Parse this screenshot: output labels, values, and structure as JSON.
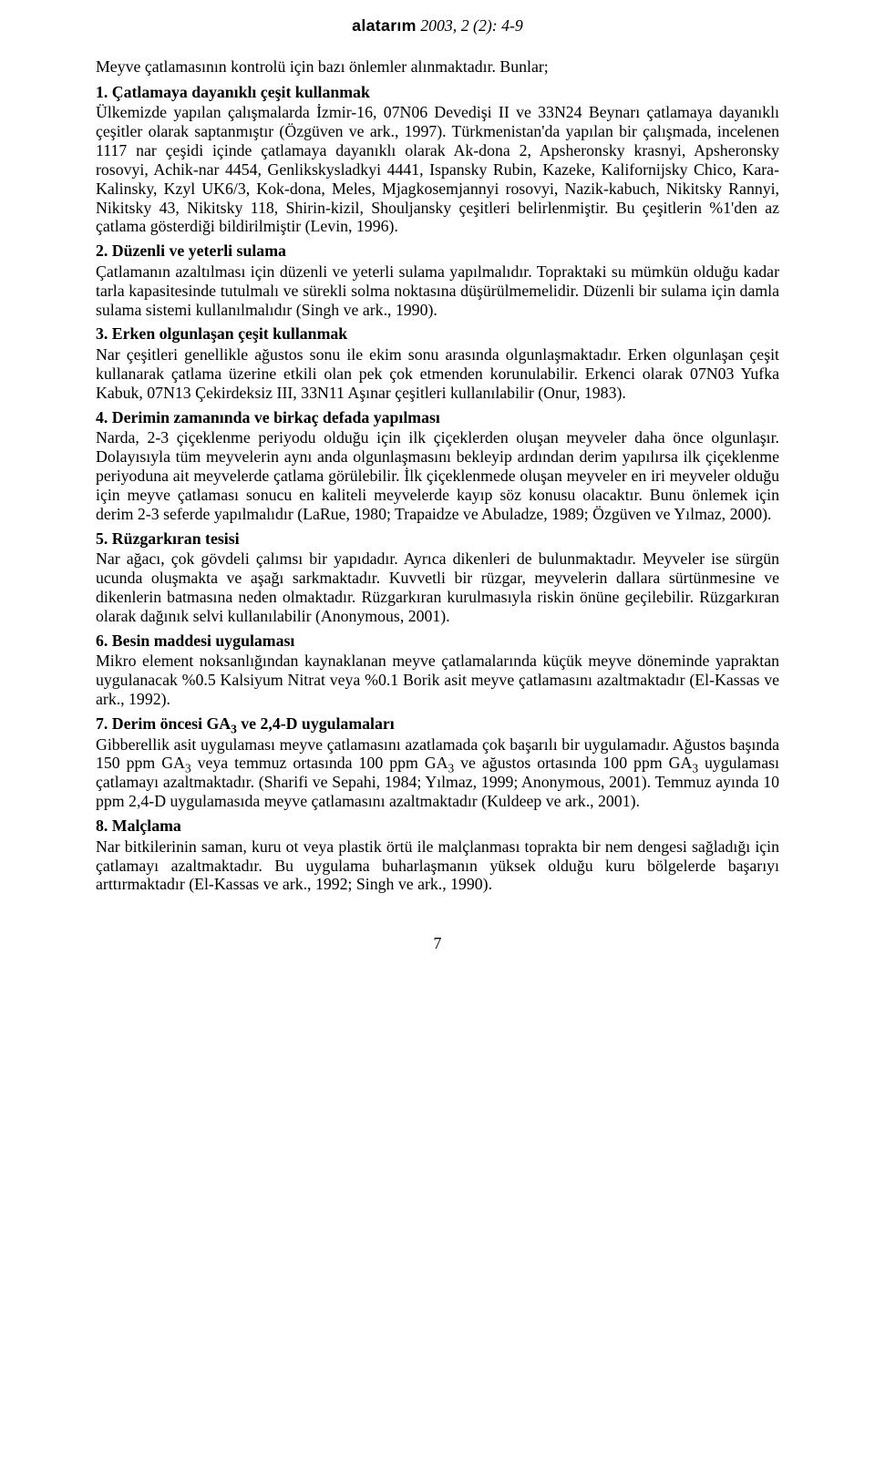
{
  "header": {
    "journal_name": "alatarım",
    "issue": "2003, 2 (2): 4-9"
  },
  "intro": "Meyve çatlamasının kontrolü için bazı önlemler alınmaktadır. Bunlar;",
  "sections": [
    {
      "title": "1. Çatlamaya dayanıklı çeşit kullanmak",
      "body": "Ülkemizde yapılan çalışmalarda İzmir-16, 07N06 Devedişi II ve 33N24 Beynarı çatlamaya dayanıklı çeşitler olarak saptanmıştır (Özgüven ve ark., 1997). Türkmenistan'da yapılan bir çalışmada, incelenen 1117 nar çeşidi içinde çatlamaya dayanıklı olarak Ak-dona 2, Apsheronsky krasnyi, Apsheronsky rosovyi, Achik-nar 4454, Genlikskysladkyi 4441, Ispansky Rubin, Kazeke, Kalifornijsky Chico, Kara-Kalinsky, Kzyl UK6/3, Kok-dona, Meles, Mjagkosemjannyi rosovyi, Nazik-kabuch, Nikitsky Rannyi, Nikitsky 43, Nikitsky 118, Shirin-kizil, Shouljansky çeşitleri belirlenmiştir. Bu çeşitlerin %1'den az çatlama gösterdiği bildirilmiştir (Levin, 1996)."
    },
    {
      "title": "2. Düzenli ve yeterli sulama",
      "body": "Çatlamanın azaltılması için düzenli ve yeterli sulama yapılmalıdır. Topraktaki su mümkün olduğu kadar tarla kapasitesinde tutulmalı ve sürekli solma noktasına düşürülmemelidir. Düzenli bir sulama için damla sulama sistemi kullanılmalıdır (Singh ve ark., 1990)."
    },
    {
      "title": "3. Erken olgunlaşan çeşit kullanmak",
      "body": "Nar çeşitleri genellikle ağustos sonu ile ekim sonu arasında olgunlaşmaktadır. Erken olgunlaşan çeşit kullanarak çatlama üzerine etkili olan pek çok etmenden korunulabilir. Erkenci olarak 07N03 Yufka Kabuk, 07N13 Çekirdeksiz III, 33N11 Aşınar çeşitleri kullanılabilir (Onur, 1983)."
    },
    {
      "title": "4. Derimin zamanında ve birkaç defada yapılması",
      "body": "Narda, 2-3 çiçeklenme periyodu olduğu için ilk çiçeklerden oluşan meyveler daha önce olgunlaşır. Dolayısıyla tüm meyvelerin aynı anda olgunlaşmasını bekleyip ardından derim yapılırsa ilk çiçeklenme periyoduna ait meyvelerde çatlama görülebilir. İlk çiçeklenmede oluşan meyveler en iri meyveler olduğu için meyve çatlaması sonucu en kaliteli meyvelerde kayıp söz konusu olacaktır. Bunu önlemek için derim 2-3 seferde yapılmalıdır (LaRue, 1980; Trapaidze ve Abuladze, 1989; Özgüven ve Yılmaz, 2000)."
    },
    {
      "title": "5. Rüzgarkıran tesisi",
      "body": "Nar ağacı, çok gövdeli çalımsı bir yapıdadır. Ayrıca dikenleri de bulunmaktadır. Meyveler ise sürgün ucunda oluşmakta ve aşağı sarkmaktadır. Kuvvetli bir rüzgar, meyvelerin dallara sürtünmesine ve dikenlerin batmasına neden olmaktadır. Rüzgarkıran kurulmasıyla riskin önüne geçilebilir. Rüzgarkıran olarak dağınık selvi kullanılabilir (Anonymous, 2001)."
    },
    {
      "title": "6. Besin maddesi uygulaması",
      "body": "Mikro element noksanlığından kaynaklanan meyve çatlamalarında küçük meyve döneminde yapraktan uygulanacak %0.5 Kalsiyum Nitrat veya %0.1 Borik asit meyve çatlamasını azaltmaktadır (El-Kassas ve ark., 1992)."
    },
    {
      "title_html": "7. Derim öncesi GA<sub>3</sub> ve 2,4-D uygulamaları",
      "body_html": "Gibberellik asit uygulaması meyve çatlamasını azatlamada çok başarılı bir uygulamadır. Ağustos başında 150 ppm GA<sub>3</sub> veya temmuz ortasında 100 ppm GA<sub>3</sub> ve ağustos ortasında 100 ppm GA<sub>3</sub> uygulaması çatlamayı azaltmaktadır. (Sharifi ve Sepahi, 1984; Yılmaz, 1999; Anonymous, 2001). Temmuz ayında 10 ppm 2,4-D uygulamasıda meyve çatlamasını azaltmaktadır (Kuldeep ve ark., 2001)."
    },
    {
      "title": "8. Malçlama",
      "body": "Nar bitkilerinin saman, kuru ot veya plastik örtü ile malçlanması toprakta bir nem dengesi sağladığı için çatlamayı azaltmaktadır. Bu uygulama buharlaşmanın yüksek olduğu kuru bölgelerde başarıyı arttırmaktadır (El-Kassas ve ark., 1992; Singh ve ark., 1990)."
    }
  ],
  "page_number": "7"
}
